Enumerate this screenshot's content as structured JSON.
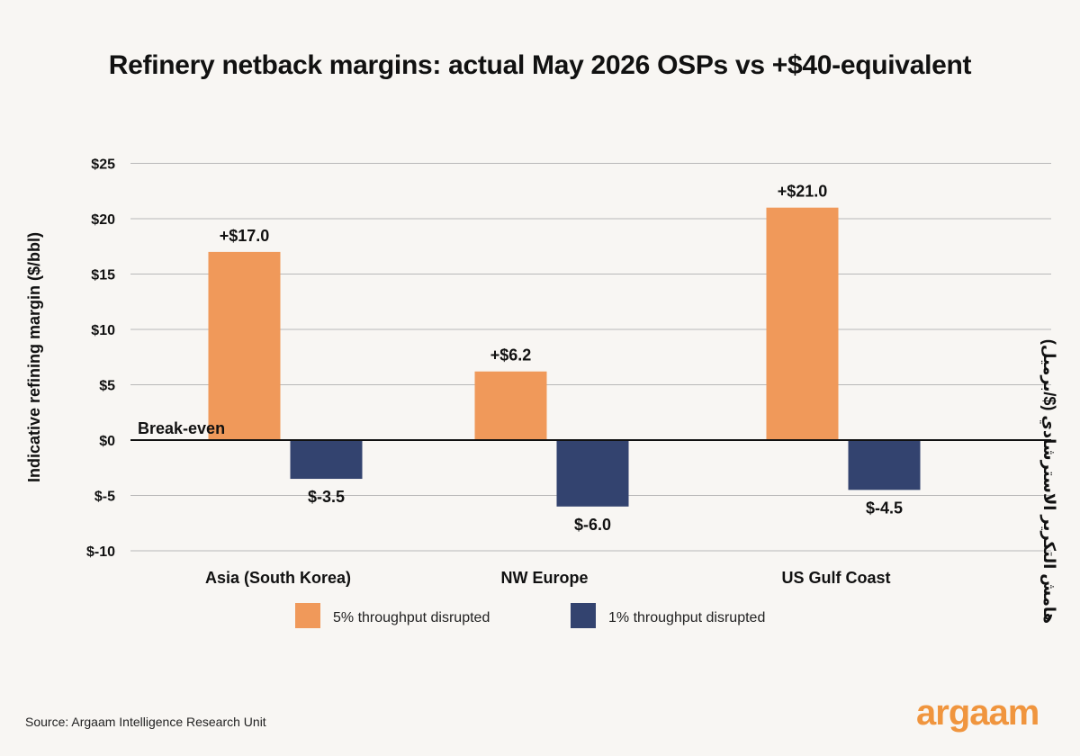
{
  "title": "Refinery netback margins: actual May 2026 OSPs vs +$40-equivalent",
  "source": "Source: Argaam Intelligence Research Unit",
  "logo_text": "argaam",
  "colors": {
    "series_5pct": "#f0995a",
    "series_1pct": "#33436f",
    "grid": "#b8b8b8",
    "logo": "#f0953e"
  },
  "chart_data": {
    "type": "bar",
    "categories": [
      "Asia (South Korea)",
      "NW Europe",
      "US Gulf Coast"
    ],
    "series": [
      {
        "name": "5% throughput disrupted",
        "values": [
          17.0,
          6.2,
          21.0
        ],
        "labels": [
          "+$17.0",
          "+$6.2",
          "+$21.0"
        ]
      },
      {
        "name": "1% throughput disrupted",
        "values": [
          -3.5,
          -6.0,
          -4.5
        ],
        "labels": [
          "$-3.5",
          "$-6.0",
          "$-4.5"
        ]
      }
    ],
    "ylabel": "Indicative refining margin ($/bbl)",
    "ylabel_right": "هامش التكرير الاسترشادي ($/برميل)",
    "ylim": [
      -10,
      25
    ],
    "yticks": [
      25,
      20,
      15,
      10,
      5,
      0,
      -5,
      -10
    ],
    "ytick_labels": [
      "$25",
      "$20",
      "$15",
      "$10",
      "$5",
      "$0",
      "$-5",
      "$-10"
    ],
    "annotation": "Break-even",
    "grid": true,
    "legend_position": "bottom-center"
  }
}
